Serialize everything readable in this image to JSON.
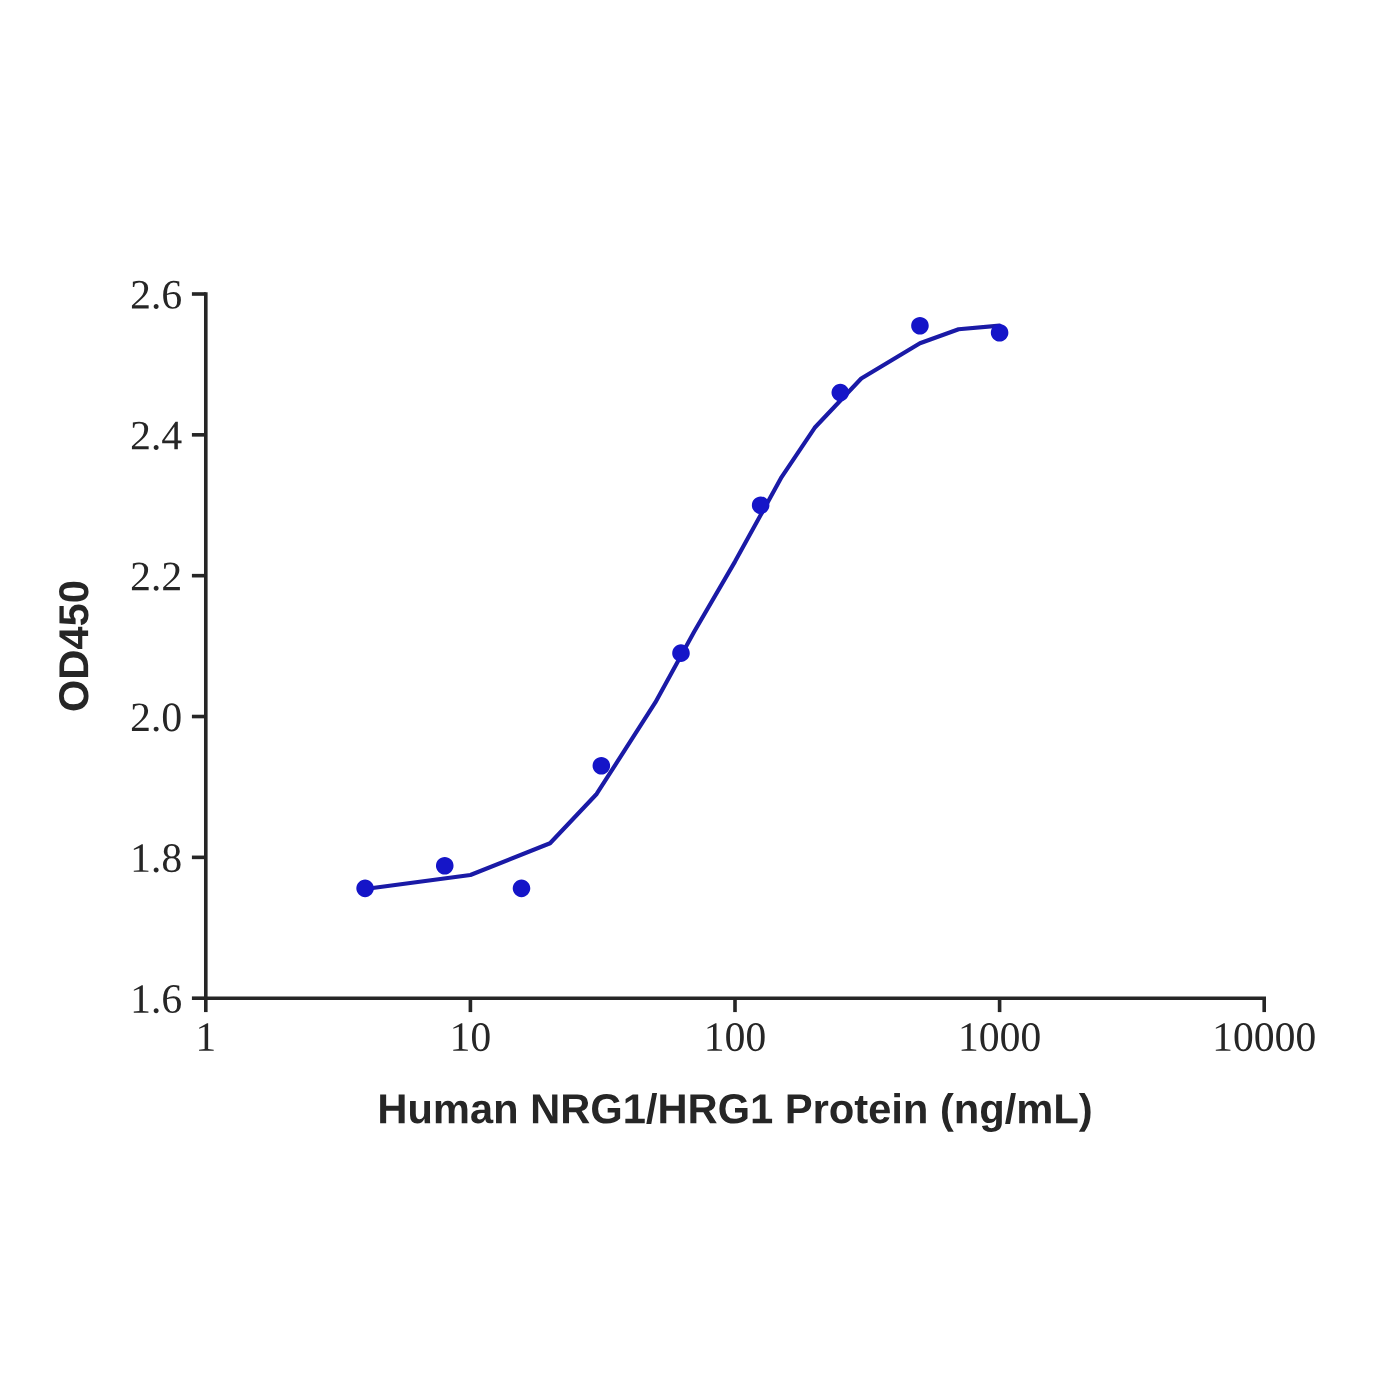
{
  "chart_data": {
    "type": "scatter",
    "xlabel": "Human NRG1/HRG1 Protein (ng/mL)",
    "ylabel": "OD450",
    "log": "x",
    "xlim": [
      1,
      10000
    ],
    "xticks": [
      1,
      10,
      100,
      1000,
      10000
    ],
    "ylim": [
      1.6,
      2.6
    ],
    "yticks": [
      {
        "value": 1.6,
        "label": "1.6"
      },
      {
        "value": 1.8,
        "label": "1.8"
      },
      {
        "value": 2.0,
        "label": "2.0"
      },
      {
        "value": 2.2,
        "label": "2.2"
      },
      {
        "value": 2.4,
        "label": "2.4"
      },
      {
        "value": 2.6,
        "label": "2.6"
      }
    ],
    "grid": false,
    "legend": false,
    "series": [
      {
        "color": "#1515c8",
        "marker": "circle",
        "x": [
          4,
          8,
          15.6,
          31.25,
          62.5,
          125,
          250,
          500,
          1000
        ],
        "values": [
          1.756,
          1.788,
          1.756,
          1.93,
          2.09,
          2.3,
          2.46,
          2.555,
          2.545
        ]
      },
      {
        "type": "line",
        "color": "#1a1aa6",
        "marker": "none",
        "line_style": "solid",
        "x": [
          4,
          10,
          20,
          30,
          50,
          70,
          100,
          150,
          200,
          300,
          500,
          700,
          1000
        ],
        "values": [
          1.755,
          1.775,
          1.82,
          1.89,
          2.02,
          2.12,
          2.22,
          2.34,
          2.41,
          2.48,
          2.53,
          2.55,
          2.555
        ]
      }
    ]
  }
}
